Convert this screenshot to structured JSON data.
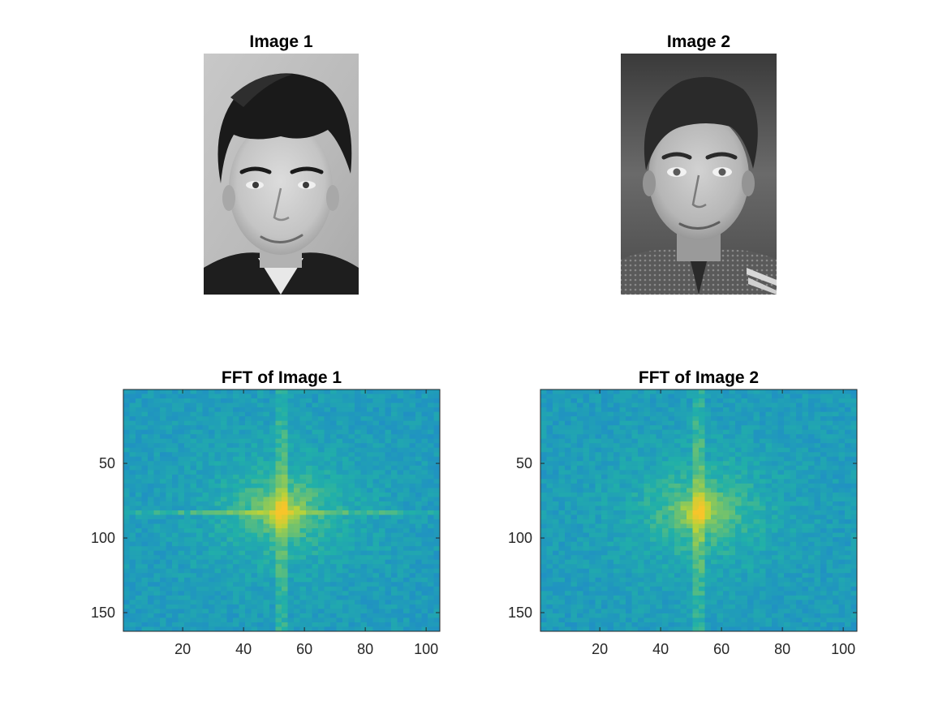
{
  "figure": {
    "background": "#ffffff",
    "panels": [
      {
        "id": "img1",
        "kind": "image",
        "title": "Image 1",
        "content": "grayscale portrait photo of a young man with dark tousled hair, smiling"
      },
      {
        "id": "img2",
        "kind": "image",
        "title": "Image 2",
        "content": "grayscale portrait photo of a young man with short dark hair, smiling, wearing a patterned tie"
      },
      {
        "id": "fft1",
        "kind": "heatmap",
        "title": "FFT of Image 1"
      },
      {
        "id": "fft2",
        "kind": "heatmap",
        "title": "FFT of Image 2"
      }
    ]
  },
  "chart_data": [
    {
      "type": "image",
      "title": "Image 1",
      "colormap": "gray",
      "axes": "off"
    },
    {
      "type": "image",
      "title": "Image 2",
      "colormap": "gray",
      "axes": "off"
    },
    {
      "type": "heatmap",
      "title": "FFT of Image 1",
      "colormap": "parula",
      "xlabel": "",
      "ylabel": "",
      "xlim": [
        0.5,
        104.5
      ],
      "ylim": [
        0.5,
        162.5
      ],
      "y_reversed": true,
      "xticks": [
        20,
        40,
        60,
        80,
        100
      ],
      "xtick_labels": [
        "20",
        "40",
        "60",
        "80",
        "100"
      ],
      "yticks": [
        50,
        100,
        150
      ],
      "ytick_labels": [
        "50",
        "100",
        "150"
      ],
      "peak": {
        "x": 53,
        "y": 82
      },
      "horizontal_streak": true,
      "vertical_streak": true,
      "grid": false,
      "colors": {
        "low": "#1f6fe0",
        "mid": "#21b0a8",
        "high": "#b8d23a",
        "peak": "#f7c52a"
      }
    },
    {
      "type": "heatmap",
      "title": "FFT of Image 2",
      "colormap": "parula",
      "xlabel": "",
      "ylabel": "",
      "xlim": [
        0.5,
        104.5
      ],
      "ylim": [
        0.5,
        162.5
      ],
      "y_reversed": true,
      "xticks": [
        20,
        40,
        60,
        80,
        100
      ],
      "xtick_labels": [
        "20",
        "40",
        "60",
        "80",
        "100"
      ],
      "yticks": [
        50,
        100,
        150
      ],
      "ytick_labels": [
        "50",
        "100",
        "150"
      ],
      "peak": {
        "x": 53,
        "y": 82
      },
      "horizontal_streak": false,
      "vertical_streak": true,
      "grid": false,
      "colors": {
        "low": "#1f6fe0",
        "mid": "#21b0a8",
        "high": "#b8d23a",
        "peak": "#f7c52a"
      }
    }
  ]
}
